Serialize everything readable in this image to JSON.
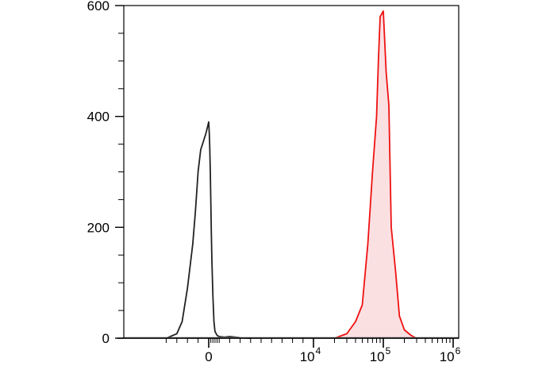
{
  "chart_data": {
    "type": "area",
    "title": "",
    "xlabel": "",
    "ylabel": "",
    "x_scale": "biexponential",
    "x_ticks": [
      {
        "value": 0,
        "label": "0",
        "sup": ""
      },
      {
        "value": 10000,
        "label": "10",
        "sup": "4"
      },
      {
        "value": 100000,
        "label": "10",
        "sup": "5"
      },
      {
        "value": 1000000,
        "label": "10",
        "sup": "6"
      }
    ],
    "y_ticks": [
      {
        "value": 0,
        "label": "0"
      },
      {
        "value": 200,
        "label": "200"
      },
      {
        "value": 400,
        "label": "400"
      },
      {
        "value": 600,
        "label": "600"
      }
    ],
    "ylim": [
      0,
      600
    ],
    "grid": false,
    "legend": "none",
    "series": [
      {
        "color": "#222222",
        "fill": "none",
        "x": [
          -800,
          -600,
          -500,
          -400,
          -300,
          -250,
          -200,
          -150,
          -100,
          -50,
          0,
          50,
          100,
          150,
          200,
          250,
          300,
          400,
          500,
          600,
          800,
          1000,
          1500,
          2000,
          3000,
          4000
        ],
        "values": [
          0,
          8,
          30,
          90,
          170,
          230,
          300,
          340,
          355,
          370,
          390,
          370,
          345,
          300,
          250,
          190,
          140,
          75,
          30,
          12,
          5,
          3,
          2,
          3,
          1,
          0
        ]
      },
      {
        "color": "#ee1111",
        "fill": "#fbe0e2",
        "x": [
          20000,
          30000,
          40000,
          50000,
          60000,
          70000,
          80000,
          85000,
          90000,
          100000,
          110000,
          120000,
          130000,
          150000,
          170000,
          200000,
          250000,
          300000
        ],
        "values": [
          0,
          8,
          30,
          60,
          170,
          300,
          400,
          500,
          580,
          590,
          480,
          420,
          200,
          120,
          40,
          15,
          5,
          0
        ]
      }
    ]
  }
}
